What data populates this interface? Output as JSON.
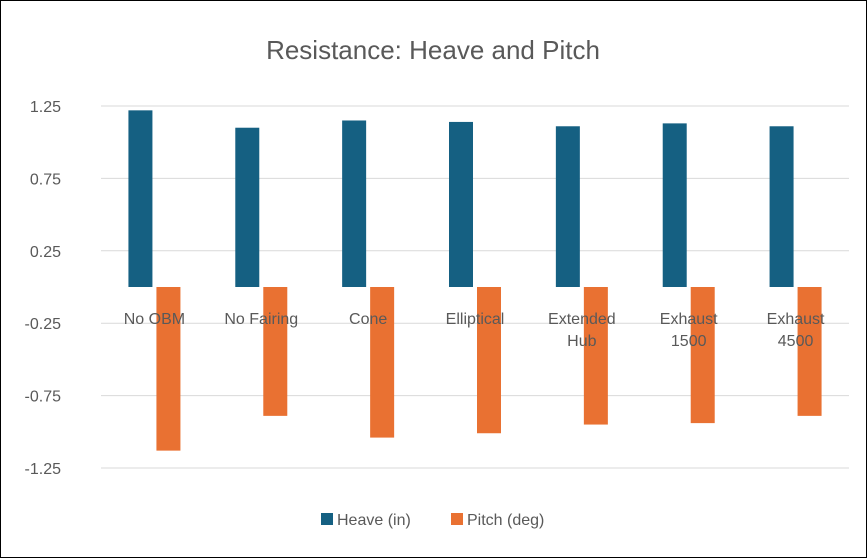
{
  "chart_data": {
    "type": "bar",
    "title": "Resistance: Heave and Pitch",
    "categories": [
      [
        "No OBM"
      ],
      [
        "No Fairing"
      ],
      [
        "Cone"
      ],
      [
        "Elliptical"
      ],
      [
        "Extended",
        "Hub"
      ],
      [
        "Exhaust",
        "1500"
      ],
      [
        "Exhaust",
        "4500"
      ]
    ],
    "series": [
      {
        "name": "Heave (in)",
        "color": "#156082",
        "values": [
          1.22,
          1.1,
          1.15,
          1.14,
          1.11,
          1.13,
          1.11
        ]
      },
      {
        "name": "Pitch (deg)",
        "color": "#E97132",
        "values": [
          -1.13,
          -0.89,
          -1.04,
          -1.01,
          -0.95,
          -0.94,
          -0.89
        ]
      }
    ],
    "y_ticks": [
      "1.25",
      "0.75",
      "0.25",
      "-0.25",
      "-0.75",
      "-1.25"
    ],
    "y_tick_values": [
      1.25,
      0.75,
      0.25,
      -0.25,
      -0.75,
      -1.25
    ],
    "ylim": [
      -1.25,
      1.25
    ],
    "grid": true,
    "legend": "bottom"
  }
}
